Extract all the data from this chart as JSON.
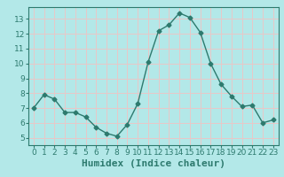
{
  "x": [
    0,
    1,
    2,
    3,
    4,
    5,
    6,
    7,
    8,
    9,
    10,
    11,
    12,
    13,
    14,
    15,
    16,
    17,
    18,
    19,
    20,
    21,
    22,
    23
  ],
  "y": [
    7.0,
    7.9,
    7.6,
    6.7,
    6.7,
    6.4,
    5.7,
    5.3,
    5.1,
    5.9,
    7.3,
    10.1,
    12.2,
    12.6,
    13.4,
    13.1,
    12.1,
    10.0,
    8.6,
    7.8,
    7.1,
    7.2,
    6.0,
    6.2
  ],
  "line_color": "#2d7a6e",
  "marker": "D",
  "markersize": 2.5,
  "linewidth": 1.0,
  "xlabel": "Humidex (Indice chaleur)",
  "xlabel_fontsize": 8,
  "ylim": [
    4.5,
    13.8
  ],
  "xlim": [
    -0.5,
    23.5
  ],
  "yticks": [
    5,
    6,
    7,
    8,
    9,
    10,
    11,
    12,
    13
  ],
  "xticks": [
    0,
    1,
    2,
    3,
    4,
    5,
    6,
    7,
    8,
    9,
    10,
    11,
    12,
    13,
    14,
    15,
    16,
    17,
    18,
    19,
    20,
    21,
    22,
    23
  ],
  "bg_color": "#b3e8e8",
  "grid_color": "#e8c8c8",
  "tick_fontsize": 6.5,
  "axis_color": "#2d7a6e",
  "spine_color": "#2d7a6e"
}
